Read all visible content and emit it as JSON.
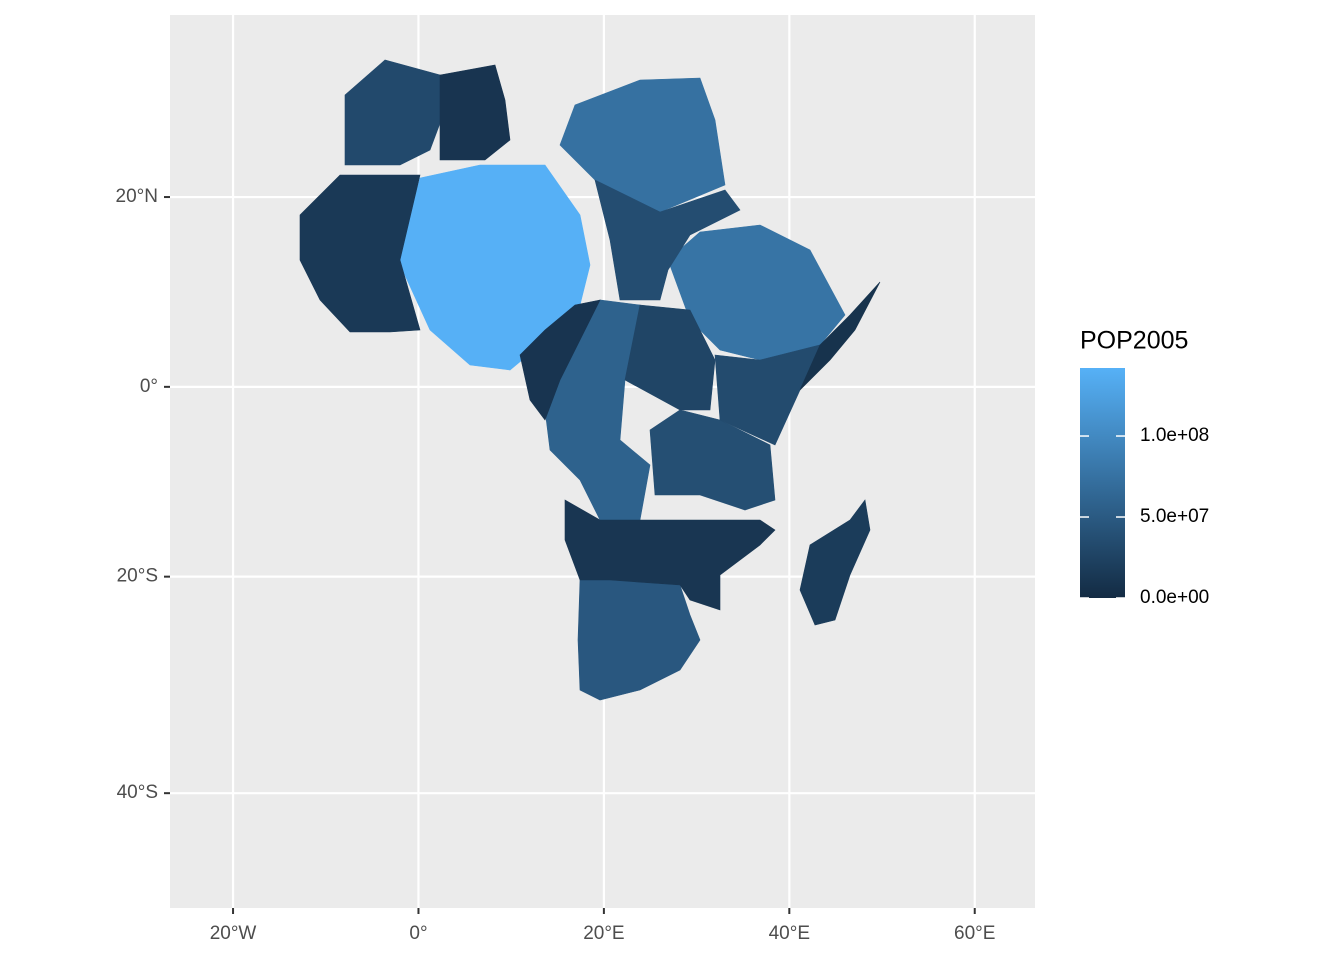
{
  "chart_data": {
    "type": "choropleth",
    "xlim": [
      -26.8,
      66.5
    ],
    "ylim": [
      -48.8,
      37.1
    ],
    "projection": "mercator",
    "grid": true,
    "xticks": [
      {
        "value": -20,
        "label": "20°W"
      },
      {
        "value": 0,
        "label": "0°"
      },
      {
        "value": 20,
        "label": "20°E"
      },
      {
        "value": 40,
        "label": "40°E"
      },
      {
        "value": 60,
        "label": "60°E"
      }
    ],
    "yticks": [
      {
        "value": 20,
        "label": "20°N"
      },
      {
        "value": 0,
        "label": "0°"
      },
      {
        "value": -20,
        "label": "20°S"
      },
      {
        "value": -40,
        "label": "40°S"
      }
    ],
    "legend": {
      "title": "POP2005",
      "position": "right",
      "limits": [
        0,
        142000000
      ],
      "low_color": "#132B43",
      "high_color": "#56B1F7",
      "ticks": [
        {
          "value": 0,
          "label": "0.0e+00"
        },
        {
          "value": 50000000,
          "label": "5.0e+07"
        },
        {
          "value": 100000000,
          "label": "1.0e+08"
        }
      ]
    },
    "values": [
      141000000,
      74000000,
      77000000,
      32000000,
      10000000,
      15000000,
      36000000,
      58000000,
      38000000,
      28000000,
      34000000,
      47000000,
      18000000,
      12000000,
      8000000,
      10000000
    ]
  }
}
